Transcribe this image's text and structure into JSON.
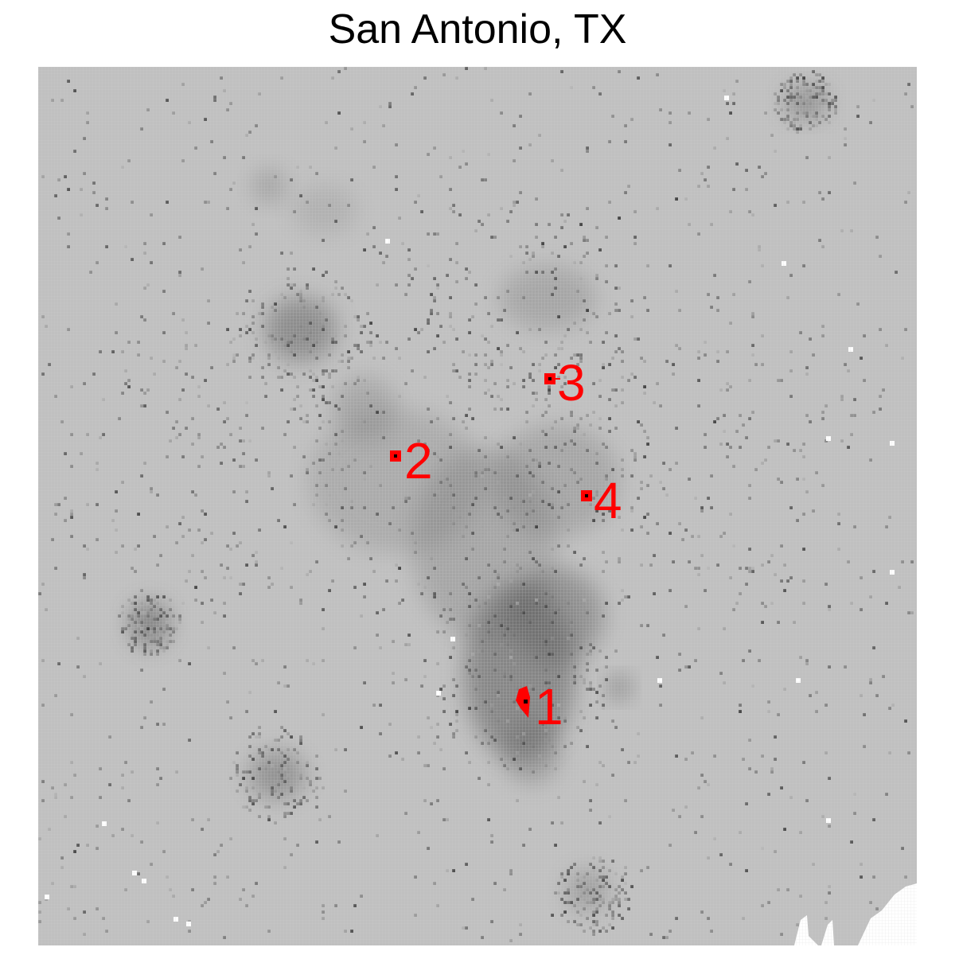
{
  "title": "San Antonio, TX",
  "colors": {
    "background": "#c0c0c0",
    "grid": "#d4d4d4",
    "marker": "#ff0000",
    "label": "#ff0000",
    "point": "#000000",
    "water": "#ffffff",
    "density_dark": "#3a3a3a"
  },
  "markers": [
    {
      "label": "1"
    },
    {
      "label": "2"
    },
    {
      "label": "3"
    },
    {
      "label": "4"
    }
  ]
}
